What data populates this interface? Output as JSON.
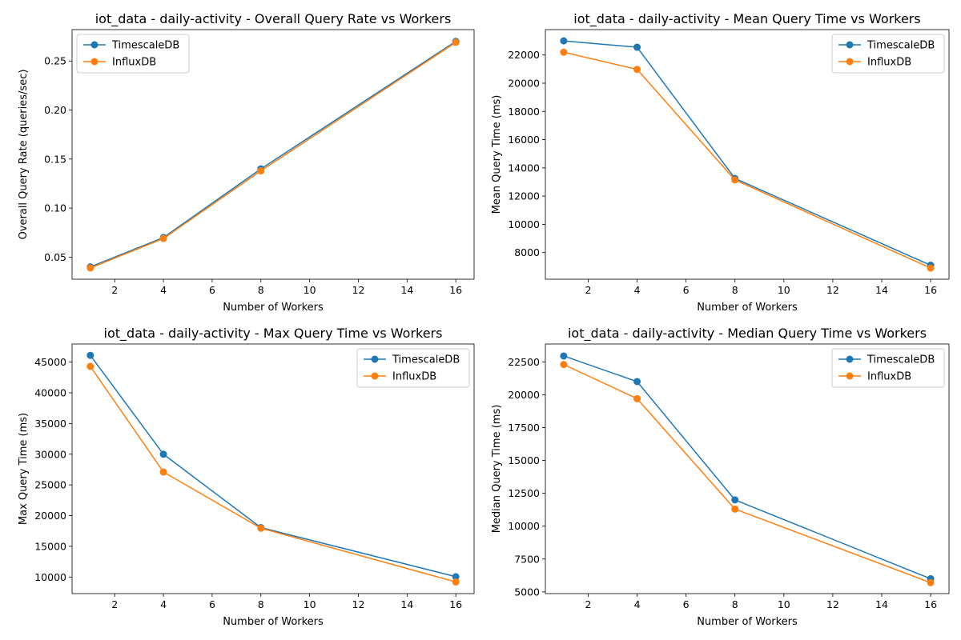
{
  "chart_data": [
    {
      "type": "line",
      "title": "iot_data - daily-activity - Overall Query Rate vs Workers",
      "xlabel": "Number of Workers",
      "ylabel": "Overall Query Rate (queries/sec)",
      "x": [
        1,
        4,
        8,
        16
      ],
      "xlim": [
        0.25,
        16.75
      ],
      "ylim": [
        0.0275,
        0.282
      ],
      "xticks": [
        2,
        4,
        6,
        8,
        10,
        12,
        14,
        16
      ],
      "yticks": [
        0.05,
        0.1,
        0.15,
        0.2,
        0.25
      ],
      "ytick_labels": [
        "0.05",
        "0.10",
        "0.15",
        "0.20",
        "0.25"
      ],
      "legend_position": "upper-left",
      "grid": false,
      "series": [
        {
          "name": "TimescaleDB",
          "color": "#1f77b4",
          "values": [
            0.04,
            0.07,
            0.14,
            0.27
          ]
        },
        {
          "name": "InfluxDB",
          "color": "#ff7f0e",
          "values": [
            0.039,
            0.069,
            0.138,
            0.269
          ]
        }
      ]
    },
    {
      "type": "line",
      "title": "iot_data - daily-activity - Mean Query Time vs Workers",
      "xlabel": "Number of Workers",
      "ylabel": "Mean Query Time (ms)",
      "x": [
        1,
        4,
        8,
        16
      ],
      "xlim": [
        0.25,
        16.75
      ],
      "ylim": [
        6110,
        23800
      ],
      "xticks": [
        2,
        4,
        6,
        8,
        10,
        12,
        14,
        16
      ],
      "yticks": [
        8000,
        10000,
        12000,
        14000,
        16000,
        18000,
        20000,
        22000
      ],
      "ytick_labels": [
        "8000",
        "10000",
        "12000",
        "14000",
        "16000",
        "18000",
        "20000",
        "22000"
      ],
      "legend_position": "upper-right",
      "grid": false,
      "series": [
        {
          "name": "TimescaleDB",
          "color": "#1f77b4",
          "values": [
            23000,
            22550,
            13250,
            7100
          ]
        },
        {
          "name": "InfluxDB",
          "color": "#ff7f0e",
          "values": [
            22200,
            20980,
            13150,
            6900
          ]
        }
      ]
    },
    {
      "type": "line",
      "title": "iot_data - daily-activity - Max Query Time vs Workers",
      "xlabel": "Number of Workers",
      "ylabel": "Max Query Time (ms)",
      "x": [
        1,
        4,
        8,
        16
      ],
      "xlim": [
        0.25,
        16.75
      ],
      "ylim": [
        7300,
        47950
      ],
      "xticks": [
        2,
        4,
        6,
        8,
        10,
        12,
        14,
        16
      ],
      "yticks": [
        10000,
        15000,
        20000,
        25000,
        30000,
        35000,
        40000,
        45000
      ],
      "ytick_labels": [
        "10000",
        "15000",
        "20000",
        "25000",
        "30000",
        "35000",
        "40000",
        "45000"
      ],
      "legend_position": "upper-right",
      "grid": false,
      "series": [
        {
          "name": "TimescaleDB",
          "color": "#1f77b4",
          "values": [
            46100,
            30000,
            18050,
            10050
          ]
        },
        {
          "name": "InfluxDB",
          "color": "#ff7f0e",
          "values": [
            44300,
            27100,
            17950,
            9200
          ]
        }
      ]
    },
    {
      "type": "line",
      "title": "iot_data - daily-activity - Median Query Time vs Workers",
      "xlabel": "Number of Workers",
      "ylabel": "Median Query Time (ms)",
      "x": [
        1,
        4,
        8,
        16
      ],
      "xlim": [
        0.25,
        16.75
      ],
      "ylim": [
        4870,
        23860
      ],
      "xticks": [
        2,
        4,
        6,
        8,
        10,
        12,
        14,
        16
      ],
      "yticks": [
        5000,
        7500,
        10000,
        12500,
        15000,
        17500,
        20000,
        22500
      ],
      "ytick_labels": [
        "5000",
        "7500",
        "10000",
        "12500",
        "15000",
        "17500",
        "20000",
        "22500"
      ],
      "legend_position": "upper-right",
      "grid": false,
      "series": [
        {
          "name": "TimescaleDB",
          "color": "#1f77b4",
          "values": [
            22950,
            21000,
            12000,
            6000
          ]
        },
        {
          "name": "InfluxDB",
          "color": "#ff7f0e",
          "values": [
            22300,
            19700,
            11300,
            5700
          ]
        }
      ]
    }
  ]
}
